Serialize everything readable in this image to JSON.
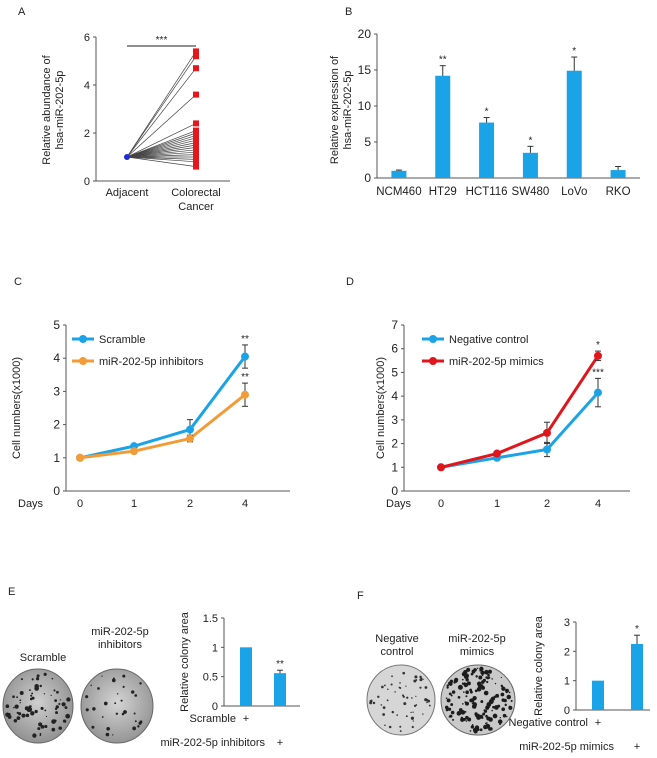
{
  "panels": {
    "a": "A",
    "b": "B",
    "c": "C",
    "d": "D",
    "e": "E",
    "f": "F"
  },
  "chart_data": [
    {
      "id": "A",
      "type": "scatter",
      "ylabel": "Relative abundance of hsa-miR-202-5p",
      "ylabel_lines": [
        "Relative abundance of",
        "hsa-miR-202-5p"
      ],
      "categories": [
        "Adjacent",
        "Colorectal Cancer"
      ],
      "category_lines": [
        [
          "Adjacent"
        ],
        [
          "Colorectal",
          "Cancer"
        ]
      ],
      "ylim": [
        0,
        6
      ],
      "yticks": [
        "0",
        "2",
        "4",
        "6"
      ],
      "adjacent": [
        1,
        1,
        1,
        1,
        1,
        1,
        1,
        1,
        1,
        1,
        1,
        1,
        1,
        1,
        1,
        1,
        1,
        1,
        1,
        1
      ],
      "cancer": [
        5.4,
        5.2,
        4.7,
        3.6,
        2.4,
        2.1,
        2.0,
        1.9,
        1.8,
        1.7,
        1.6,
        1.5,
        1.4,
        1.3,
        1.2,
        1.1,
        1.0,
        0.9,
        0.8,
        0.6
      ],
      "significance": "***",
      "adjacent_color": "#1f2bd6",
      "cancer_color": "#e8161b"
    },
    {
      "id": "B",
      "type": "bar",
      "ylabel": "Relative expression of hsa-miR-202-5p",
      "ylabel_lines": [
        "Relative expression of",
        "hsa-miR-202-5p"
      ],
      "categories": [
        "NCM460",
        "HT29",
        "HCT116",
        "SW480",
        "LoVo",
        "RKO"
      ],
      "values": [
        1.0,
        14.2,
        7.7,
        3.5,
        14.9,
        1.1
      ],
      "errors": [
        0.1,
        1.4,
        0.7,
        0.9,
        1.9,
        0.5
      ],
      "stars": [
        "",
        "**",
        "*",
        "*",
        "*",
        ""
      ],
      "ylim": [
        0,
        20
      ],
      "yticks": [
        "0",
        "5",
        "10",
        "15",
        "20"
      ],
      "color": "#1aa3e6"
    },
    {
      "id": "C",
      "type": "line",
      "xlabel": "Days",
      "ylabel": "Cell numbers(x1000)",
      "categories": [
        "0",
        "1",
        "2",
        "4"
      ],
      "ylim": [
        0,
        5
      ],
      "yticks": [
        "0",
        "1",
        "2",
        "3",
        "4",
        "5"
      ],
      "series": [
        {
          "name": "Scramble",
          "values": [
            1.0,
            1.35,
            1.85,
            4.05
          ],
          "errors": [
            0.03,
            0.05,
            0.3,
            0.35
          ],
          "color": "#1aa3e6",
          "stars": [
            "",
            "",
            "",
            "**"
          ]
        },
        {
          "name": "miR-202-5p inhibitors",
          "values": [
            1.0,
            1.2,
            1.58,
            2.9
          ],
          "errors": [
            0.03,
            0.05,
            0.1,
            0.35
          ],
          "color": "#f29b37",
          "stars": [
            "",
            "",
            "",
            "**"
          ]
        }
      ]
    },
    {
      "id": "D",
      "type": "line",
      "xlabel": "Days",
      "ylabel": "Cell numbers(x1000)",
      "categories": [
        "0",
        "1",
        "2",
        "4"
      ],
      "ylim": [
        0,
        7
      ],
      "yticks": [
        "0",
        "1",
        "2",
        "3",
        "4",
        "5",
        "6",
        "7"
      ],
      "series": [
        {
          "name": "Negative control",
          "values": [
            1.0,
            1.4,
            1.75,
            4.15
          ],
          "errors": [
            0.03,
            0.05,
            0.3,
            0.6
          ],
          "color": "#1aa3e6",
          "stars": [
            "",
            "",
            "",
            "***"
          ]
        },
        {
          "name": "miR-202-5p mimics",
          "values": [
            1.0,
            1.58,
            2.45,
            5.7
          ],
          "errors": [
            0.03,
            0.08,
            0.45,
            0.2
          ],
          "color": "#e0161c",
          "stars": [
            "",
            "",
            "",
            "*"
          ]
        }
      ]
    },
    {
      "id": "E",
      "type": "bar",
      "ylabel": "Relative colony area",
      "categories": [
        "Scramble",
        "miR-202-5p inhibitors"
      ],
      "values": [
        1.0,
        0.56
      ],
      "errors": [
        0.0,
        0.05
      ],
      "stars": [
        "",
        "**"
      ],
      "ylim": [
        0,
        1.5
      ],
      "yticks": [
        "0",
        "0.5",
        "1",
        "1.5"
      ],
      "color": "#1aa3e6",
      "row_labels": [
        "Scramble",
        "miR-202-5p inhibitors"
      ],
      "plus": [
        "+",
        "+"
      ]
    },
    {
      "id": "F",
      "type": "bar",
      "ylabel": "Relative colony area",
      "categories": [
        "Negative control",
        "miR-202-5p mimics"
      ],
      "values": [
        1.0,
        2.25
      ],
      "errors": [
        0.0,
        0.3
      ],
      "stars": [
        "",
        "*"
      ],
      "ylim": [
        0,
        3
      ],
      "yticks": [
        "0",
        "1",
        "2",
        "3"
      ],
      "color": "#1aa3e6",
      "row_labels": [
        "Negative control",
        "miR-202-5p mimics"
      ],
      "plus": [
        "+",
        "+"
      ]
    }
  ],
  "dishes": {
    "e_left": [
      "Scramble"
    ],
    "e_right": [
      "miR-202-5p",
      "inhibitors"
    ],
    "f_left": [
      "Negative",
      "control"
    ],
    "f_right": [
      "miR-202-5p",
      "mimics"
    ]
  }
}
